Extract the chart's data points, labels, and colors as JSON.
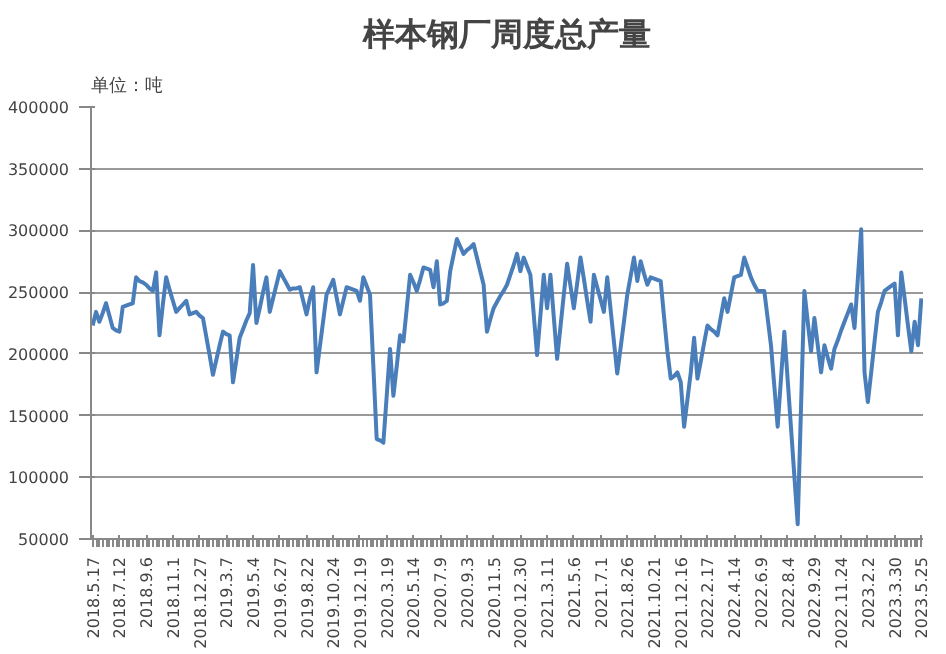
{
  "chart_data": {
    "type": "line",
    "title": "样本钢厂周度总产量",
    "annotations": [
      "单位：吨"
    ],
    "categories": [
      "2018.5.17",
      null,
      null,
      null,
      null,
      null,
      null,
      null,
      "2018.7.12",
      null,
      null,
      null,
      null,
      null,
      null,
      null,
      "2018.9.6",
      null,
      null,
      null,
      null,
      null,
      null,
      null,
      "2018.11.1",
      null,
      null,
      null,
      null,
      null,
      null,
      null,
      "2018.12.27",
      null,
      null,
      null,
      null,
      null,
      null,
      null,
      "2019.3.7",
      null,
      null,
      null,
      null,
      null,
      null,
      null,
      "2019.5.4",
      null,
      null,
      null,
      null,
      null,
      null,
      null,
      "2019.6.27",
      null,
      null,
      null,
      null,
      null,
      null,
      null,
      "2019.8.22",
      null,
      null,
      null,
      null,
      null,
      null,
      null,
      "2019.10.24",
      null,
      null,
      null,
      null,
      null,
      null,
      null,
      "2019.12.19",
      null,
      null,
      null,
      null,
      null,
      null,
      null,
      "2020.3.19",
      null,
      null,
      null,
      null,
      null,
      null,
      null,
      "2020.5.14",
      null,
      null,
      null,
      null,
      null,
      null,
      null,
      "2020.7.9",
      null,
      null,
      null,
      null,
      null,
      null,
      null,
      "2020.9.3",
      null,
      null,
      null,
      null,
      null,
      null,
      null,
      "2020.11.5",
      null,
      null,
      null,
      null,
      null,
      null,
      null,
      "2020.12.30",
      null,
      null,
      null,
      null,
      null,
      null,
      null,
      "2021.3.11",
      null,
      null,
      null,
      null,
      null,
      null,
      null,
      "2021.5.6",
      null,
      null,
      null,
      null,
      null,
      null,
      null,
      "2021.7.1",
      null,
      null,
      null,
      null,
      null,
      null,
      null,
      "2021.8.26",
      null,
      null,
      null,
      null,
      null,
      null,
      null,
      "2021.10.21",
      null,
      null,
      null,
      null,
      null,
      null,
      null,
      "2021.12.16",
      null,
      null,
      null,
      null,
      null,
      null,
      null,
      "2022.2.17",
      null,
      null,
      null,
      null,
      null,
      null,
      null,
      "2022.4.14",
      null,
      null,
      null,
      null,
      null,
      null,
      null,
      "2022.6.9",
      null,
      null,
      null,
      null,
      null,
      null,
      null,
      "2022.8.4",
      null,
      null,
      null,
      null,
      null,
      null,
      null,
      "2022.9.29",
      null,
      null,
      null,
      null,
      null,
      null,
      null,
      "2022.11.24",
      null,
      null,
      null,
      null,
      null,
      null,
      null,
      "2023.2.2",
      null,
      null,
      null,
      null,
      null,
      null,
      null,
      "2023.3.30",
      null,
      null,
      null,
      null,
      null,
      null,
      null,
      "2023.5.25"
    ],
    "series": [
      {
        "color": "#4a7ebb",
        "values": [
          223000,
          234000,
          226000,
          233000,
          241000,
          231000,
          221000,
          219000,
          218000,
          238000,
          239000,
          240000,
          241000,
          262000,
          259000,
          258000,
          256000,
          253000,
          251000,
          266000,
          215000,
          240000,
          262000,
          252000,
          243000,
          234000,
          237000,
          240000,
          243000,
          232000,
          233000,
          234000,
          231000,
          229000,
          214000,
          199000,
          183000,
          195000,
          207000,
          218000,
          216000,
          215000,
          177000,
          195000,
          213000,
          220000,
          227000,
          233000,
          272000,
          225000,
          237000,
          250000,
          262000,
          234000,
          245000,
          256000,
          267000,
          262000,
          257000,
          252000,
          253000,
          253000,
          254000,
          243000,
          232000,
          245000,
          254000,
          185000,
          206000,
          227000,
          248000,
          254000,
          260000,
          246000,
          232000,
          243000,
          254000,
          253000,
          252000,
          251000,
          243000,
          262000,
          255000,
          248000,
          190000,
          131000,
          130000,
          128000,
          166000,
          204000,
          166000,
          190000,
          215000,
          210000,
          237000,
          264000,
          258000,
          251000,
          260000,
          270000,
          269000,
          268000,
          254000,
          275000,
          240000,
          241000,
          243000,
          267000,
          280000,
          293000,
          287000,
          281000,
          284000,
          286000,
          289000,
          278000,
          267000,
          256000,
          218000,
          228000,
          237000,
          242000,
          247000,
          251000,
          256000,
          264000,
          272000,
          281000,
          267000,
          278000,
          271000,
          264000,
          232000,
          199000,
          231000,
          264000,
          237000,
          264000,
          230000,
          196000,
          222000,
          248000,
          273000,
          255000,
          237000,
          257000,
          278000,
          261000,
          243000,
          226000,
          264000,
          254000,
          244000,
          234000,
          262000,
          236000,
          210000,
          184000,
          205000,
          226000,
          248000,
          263000,
          278000,
          259000,
          275000,
          265000,
          256000,
          262000,
          261000,
          260000,
          259000,
          230000,
          202000,
          180000,
          182000,
          185000,
          177000,
          141000,
          163000,
          185000,
          213000,
          180000,
          194000,
          209000,
          223000,
          220000,
          218000,
          215000,
          230000,
          245000,
          234000,
          248000,
          262000,
          263000,
          264000,
          278000,
          270000,
          262000,
          256000,
          251000,
          251000,
          251000,
          229000,
          207000,
          174000,
          141000,
          180000,
          218000,
          179000,
          140000,
          101000,
          62000,
          157000,
          251000,
          226000,
          202000,
          229000,
          207000,
          185000,
          207000,
          197000,
          188000,
          204000,
          211000,
          219000,
          226000,
          233000,
          240000,
          221000,
          261000,
          301000,
          185000,
          161000,
          185000,
          210000,
          234000,
          242000,
          251000,
          253000,
          255000,
          257000,
          215000,
          266000,
          245000,
          223000,
          202000,
          226000,
          207000,
          245000
        ]
      }
    ],
    "ylim": [
      50000,
      400000
    ],
    "yticks": [
      50000,
      100000,
      150000,
      200000,
      250000,
      300000,
      350000,
      400000
    ],
    "grid": "y",
    "line_style": "solid"
  }
}
